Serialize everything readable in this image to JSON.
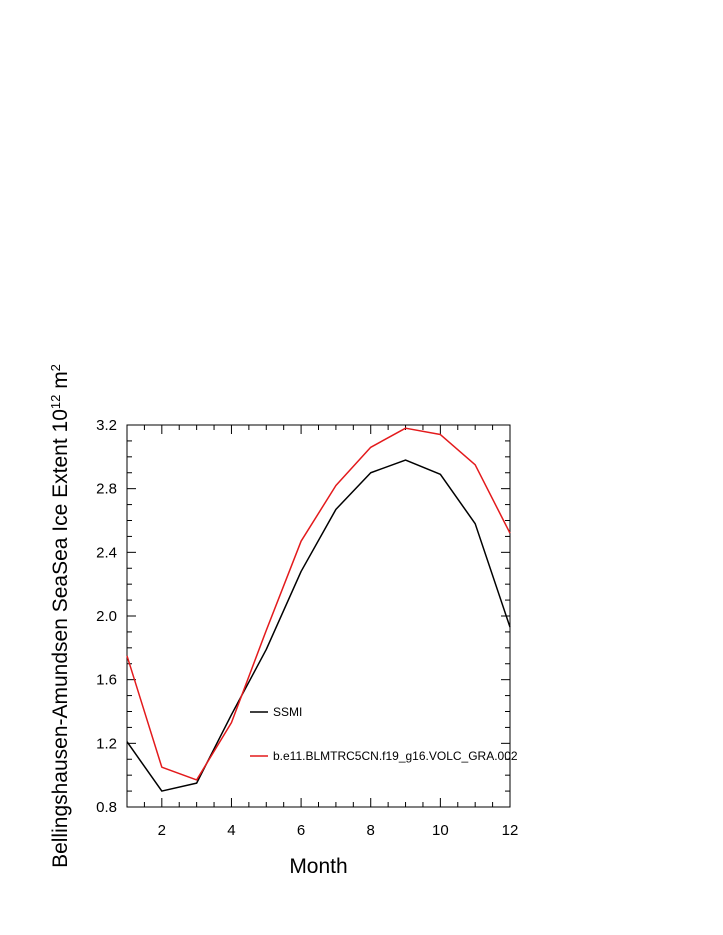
{
  "chart_data": {
    "type": "line",
    "xlabel": "Month",
    "ylabel": "Bellingshausen-Amundsen SeaSea Ice Extent 10",
    "ylabel_exponent": "12",
    "ylabel_unit": " m",
    "ylabel_unit_exponent": "2",
    "xlim": [
      1,
      12
    ],
    "ylim": [
      0.8,
      3.2
    ],
    "x_ticks": [
      2,
      4,
      6,
      8,
      10,
      12
    ],
    "x_tick_labels": [
      "2",
      "4",
      "6",
      "8",
      "10",
      "12"
    ],
    "y_ticks": [
      0.8,
      1.2,
      1.6,
      2.0,
      2.4,
      2.8,
      3.2
    ],
    "y_tick_labels": [
      "0.8",
      "1.2",
      "1.6",
      "2.0",
      "2.4",
      "2.8",
      "3.2"
    ],
    "grid": false,
    "legend_position": "inside-bottom-right",
    "x": [
      1,
      2,
      3,
      4,
      5,
      6,
      7,
      8,
      9,
      10,
      11,
      12
    ],
    "series": [
      {
        "name": "SSMI",
        "color": "#000000",
        "values": [
          1.21,
          0.9,
          0.95,
          1.38,
          1.79,
          2.28,
          2.67,
          2.9,
          2.98,
          2.89,
          2.58,
          1.93
        ]
      },
      {
        "name": "b.e11.BLMTRC5CN.f19_g16.VOLC_GRA.002",
        "color": "#e31a1c",
        "values": [
          1.75,
          1.05,
          0.97,
          1.33,
          1.91,
          2.47,
          2.82,
          3.06,
          3.18,
          3.14,
          2.95,
          2.52
        ]
      }
    ]
  }
}
